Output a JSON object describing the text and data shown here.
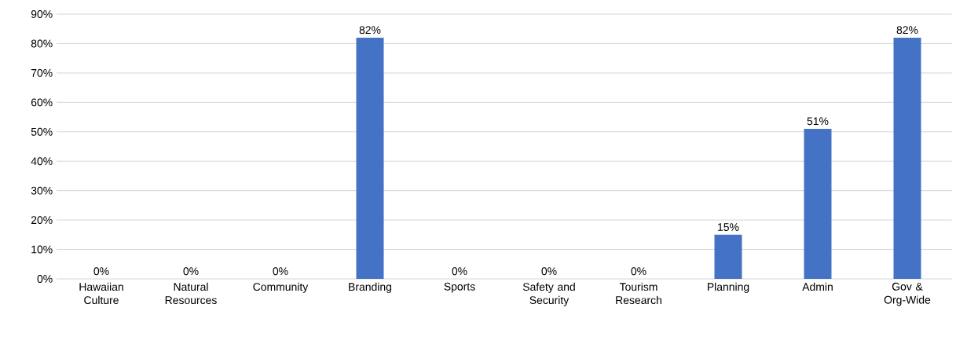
{
  "chart_data": {
    "type": "bar",
    "categories": [
      "Hawaiian Culture",
      "Natural Resources",
      "Community",
      "Branding",
      "Sports",
      "Safety and Security",
      "Tourism Research",
      "Planning",
      "Admin",
      "Gov & Org-Wide"
    ],
    "values": [
      0,
      0,
      0,
      82,
      0,
      0,
      0,
      15,
      51,
      82
    ],
    "value_labels": [
      "0%",
      "0%",
      "0%",
      "82%",
      "0%",
      "0%",
      "0%",
      "15%",
      "51%",
      "82%"
    ],
    "color": "#4472c4",
    "ylim": [
      0,
      90
    ],
    "yticks": [
      {
        "value": 0,
        "label": "0%"
      },
      {
        "value": 10,
        "label": "10%"
      },
      {
        "value": 20,
        "label": "20%"
      },
      {
        "value": 30,
        "label": "30%"
      },
      {
        "value": 40,
        "label": "40%"
      },
      {
        "value": 50,
        "label": "50%"
      },
      {
        "value": 60,
        "label": "60%"
      },
      {
        "value": 70,
        "label": "70%"
      },
      {
        "value": 80,
        "label": "80%"
      },
      {
        "value": 90,
        "label": "90%"
      }
    ],
    "grid": "y"
  }
}
